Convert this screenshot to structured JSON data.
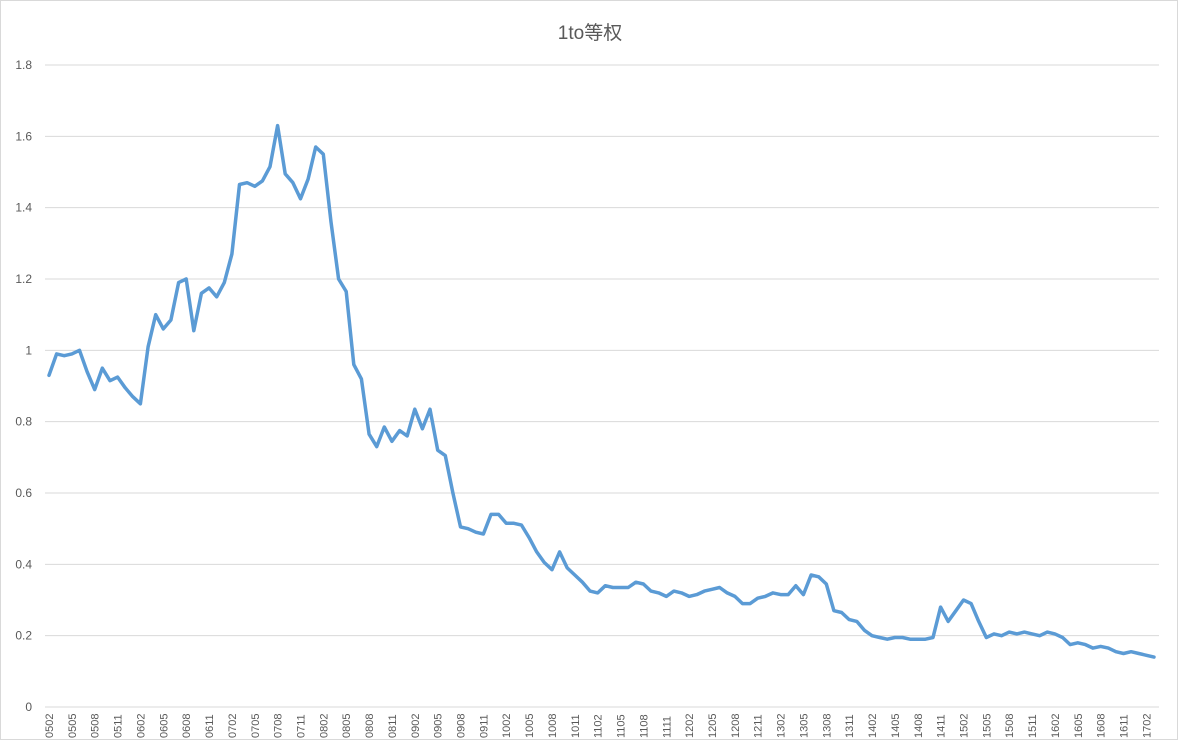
{
  "chart_data": {
    "type": "line",
    "title": "1to等权",
    "xlabel": "",
    "ylabel": "",
    "ylim": [
      0,
      1.8
    ],
    "yticks": [
      0,
      0.2,
      0.4,
      0.6,
      0.8,
      1,
      1.2,
      1.4,
      1.6,
      1.8
    ],
    "ytick_labels": [
      "0",
      "0.2",
      "0.4",
      "0.6",
      "0.8",
      "1",
      "1.2",
      "1.4",
      "1.6",
      "1.8"
    ],
    "grid": true,
    "legend": "none",
    "colors": {
      "series": "#5b9bd5",
      "grid": "#d9d9d9",
      "text": "#595959"
    },
    "x": [
      "0502",
      "0503",
      "0504",
      "0505",
      "0506",
      "0507",
      "0508",
      "0509",
      "0510",
      "0511",
      "0512",
      "0601",
      "0602",
      "0603",
      "0604",
      "0605",
      "0606",
      "0607",
      "0608",
      "0609",
      "0610",
      "0611",
      "0612",
      "0701",
      "0702",
      "0703",
      "0704",
      "0705",
      "0706",
      "0707",
      "0708",
      "0709",
      "0710",
      "0711",
      "0712",
      "0801",
      "0802",
      "0803",
      "0804",
      "0805",
      "0806",
      "0807",
      "0808",
      "0809",
      "0810",
      "0811",
      "0812",
      "0901",
      "0902",
      "0903",
      "0904",
      "0905",
      "0906",
      "0907",
      "0908",
      "0909",
      "0910",
      "0911",
      "0912",
      "1001",
      "1002",
      "1003",
      "1004",
      "1005",
      "1006",
      "1007",
      "1008",
      "1009",
      "1010",
      "1011",
      "1012",
      "1101",
      "1102",
      "1103",
      "1104",
      "1105",
      "1106",
      "1107",
      "1108",
      "1109",
      "1110",
      "1111",
      "1112",
      "1201",
      "1202",
      "1203",
      "1204",
      "1205",
      "1206",
      "1207",
      "1208",
      "1209",
      "1210",
      "1211",
      "1212",
      "1301",
      "1302",
      "1303",
      "1304",
      "1305",
      "1306",
      "1307",
      "1308",
      "1309",
      "1310",
      "1311",
      "1312",
      "1401",
      "1402",
      "1403",
      "1404",
      "1405",
      "1406",
      "1407",
      "1408",
      "1409",
      "1410",
      "1411",
      "1412",
      "1501",
      "1502",
      "1503",
      "1504",
      "1505",
      "1506",
      "1507",
      "1508",
      "1509",
      "1510",
      "1511",
      "1512",
      "1601",
      "1602",
      "1603",
      "1604",
      "1605",
      "1606",
      "1607",
      "1608",
      "1609",
      "1610",
      "1611",
      "1612",
      "1701",
      "1702",
      "1703"
    ],
    "x_tick_labels": [
      "0502",
      "0505",
      "0508",
      "0511",
      "0602",
      "0605",
      "0608",
      "0611",
      "0702",
      "0705",
      "0708",
      "0711",
      "0802",
      "0805",
      "0808",
      "0811",
      "0902",
      "0905",
      "0908",
      "0911",
      "1002",
      "1005",
      "1008",
      "1011",
      "1102",
      "1105",
      "1108",
      "1111",
      "1202",
      "1205",
      "1208",
      "1211",
      "1302",
      "1305",
      "1308",
      "1311",
      "1402",
      "1405",
      "1408",
      "1411",
      "1502",
      "1505",
      "1508",
      "1511",
      "1602",
      "1605",
      "1608",
      "1611",
      "1702"
    ],
    "series": [
      {
        "values": [
          0.93,
          0.99,
          0.985,
          0.99,
          1.0,
          0.94,
          0.89,
          0.95,
          0.915,
          0.925,
          0.895,
          0.87,
          0.85,
          1.01,
          1.1,
          1.06,
          1.085,
          1.19,
          1.2,
          1.055,
          1.16,
          1.175,
          1.15,
          1.19,
          1.27,
          1.465,
          1.47,
          1.46,
          1.475,
          1.515,
          1.63,
          1.495,
          1.47,
          1.425,
          1.48,
          1.57,
          1.55,
          1.36,
          1.2,
          1.165,
          0.96,
          0.92,
          0.765,
          0.73,
          0.785,
          0.745,
          0.775,
          0.76,
          0.835,
          0.78,
          0.835,
          0.72,
          0.705,
          0.6,
          0.505,
          0.5,
          0.49,
          0.485,
          0.54,
          0.54,
          0.515,
          0.515,
          0.51,
          0.475,
          0.435,
          0.405,
          0.385,
          0.435,
          0.39,
          0.37,
          0.35,
          0.325,
          0.32,
          0.34,
          0.335,
          0.335,
          0.335,
          0.35,
          0.345,
          0.325,
          0.32,
          0.31,
          0.325,
          0.32,
          0.31,
          0.315,
          0.325,
          0.33,
          0.335,
          0.32,
          0.31,
          0.29,
          0.29,
          0.305,
          0.31,
          0.32,
          0.315,
          0.315,
          0.34,
          0.315,
          0.37,
          0.365,
          0.345,
          0.27,
          0.265,
          0.245,
          0.24,
          0.215,
          0.2,
          0.195,
          0.19,
          0.195,
          0.195,
          0.19,
          0.19,
          0.19,
          0.195,
          0.28,
          0.24,
          0.27,
          0.3,
          0.29,
          0.24,
          0.195,
          0.205,
          0.2,
          0.21,
          0.205,
          0.21,
          0.205,
          0.2,
          0.21,
          0.205,
          0.195,
          0.175,
          0.18,
          0.175,
          0.165,
          0.17,
          0.165,
          0.155,
          0.15,
          0.155,
          0.15,
          0.145,
          0.14
        ]
      }
    ]
  }
}
